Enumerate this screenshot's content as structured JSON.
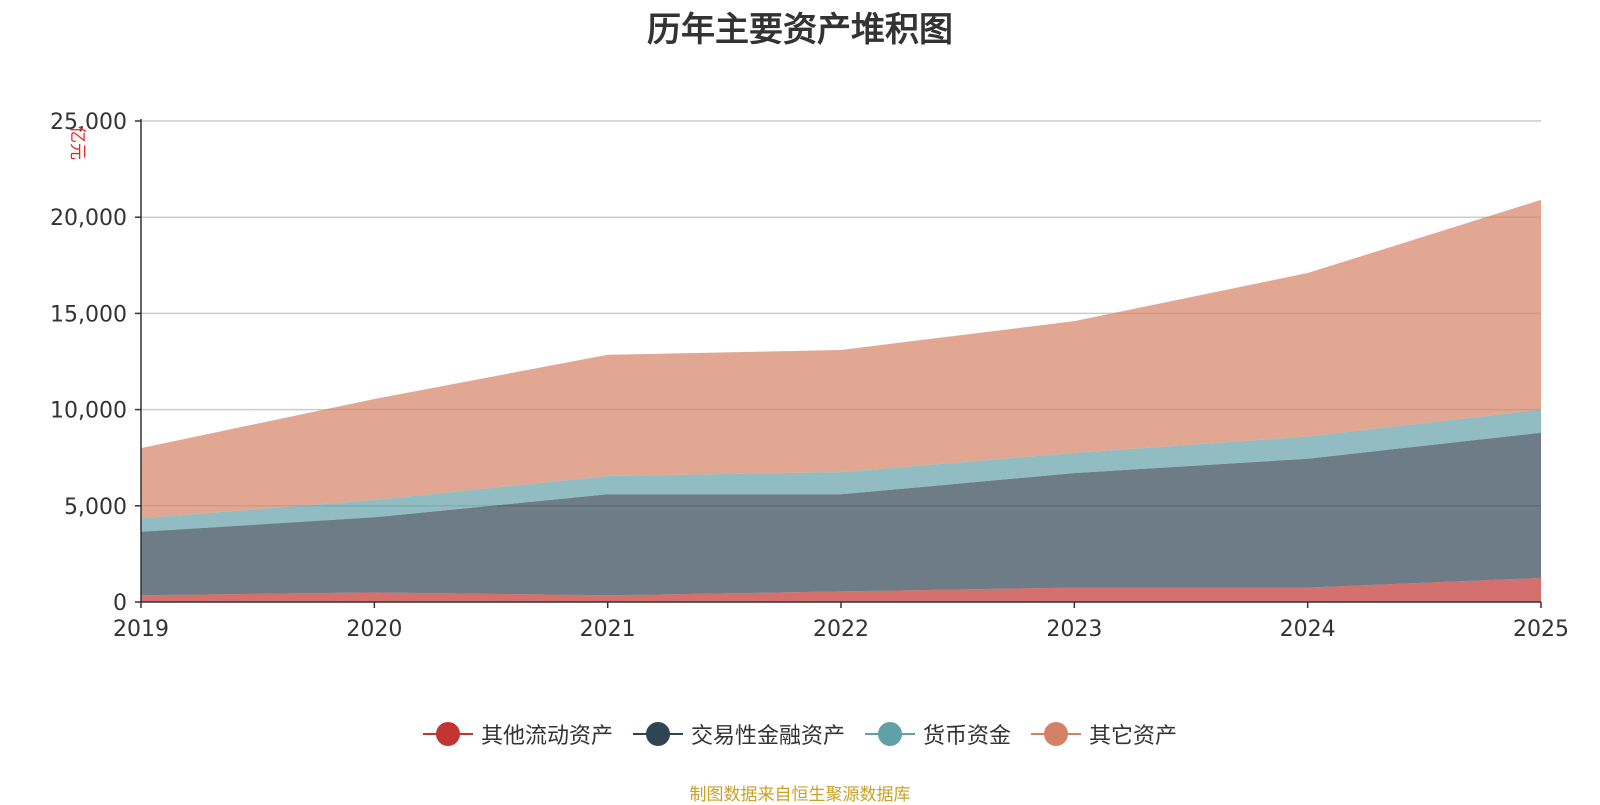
{
  "chart_data": {
    "type": "area",
    "stacked": true,
    "title": "历年主要资产堆积图",
    "ylabel": "亿元",
    "categories": [
      "2019",
      "2020",
      "2021",
      "2022",
      "2023",
      "2024",
      "2025"
    ],
    "ylim": [
      0,
      25000
    ],
    "yticks": [
      0,
      5000,
      10000,
      15000,
      20000,
      25000
    ],
    "ytick_labels": [
      "0",
      "5,000",
      "10,000",
      "15,000",
      "20,000",
      "25,000"
    ],
    "grid": true,
    "legend_position": "bottom",
    "series": [
      {
        "name": "其他流动资产",
        "color": "#c23531",
        "values": [
          350,
          500,
          350,
          550,
          750,
          750,
          1250
        ]
      },
      {
        "name": "交易性金融资产",
        "color": "#2f4554",
        "values": [
          3300,
          3900,
          5250,
          5050,
          5950,
          6700,
          7550
        ]
      },
      {
        "name": "货币资金",
        "color": "#61a0a8",
        "values": [
          700,
          900,
          950,
          1150,
          1050,
          1150,
          1200
        ]
      },
      {
        "name": "其它资产",
        "color": "#d48265",
        "values": [
          3650,
          5250,
          6300,
          6350,
          6850,
          8500,
          10900
        ]
      }
    ],
    "source": "制图数据来自恒生聚源数据库"
  }
}
